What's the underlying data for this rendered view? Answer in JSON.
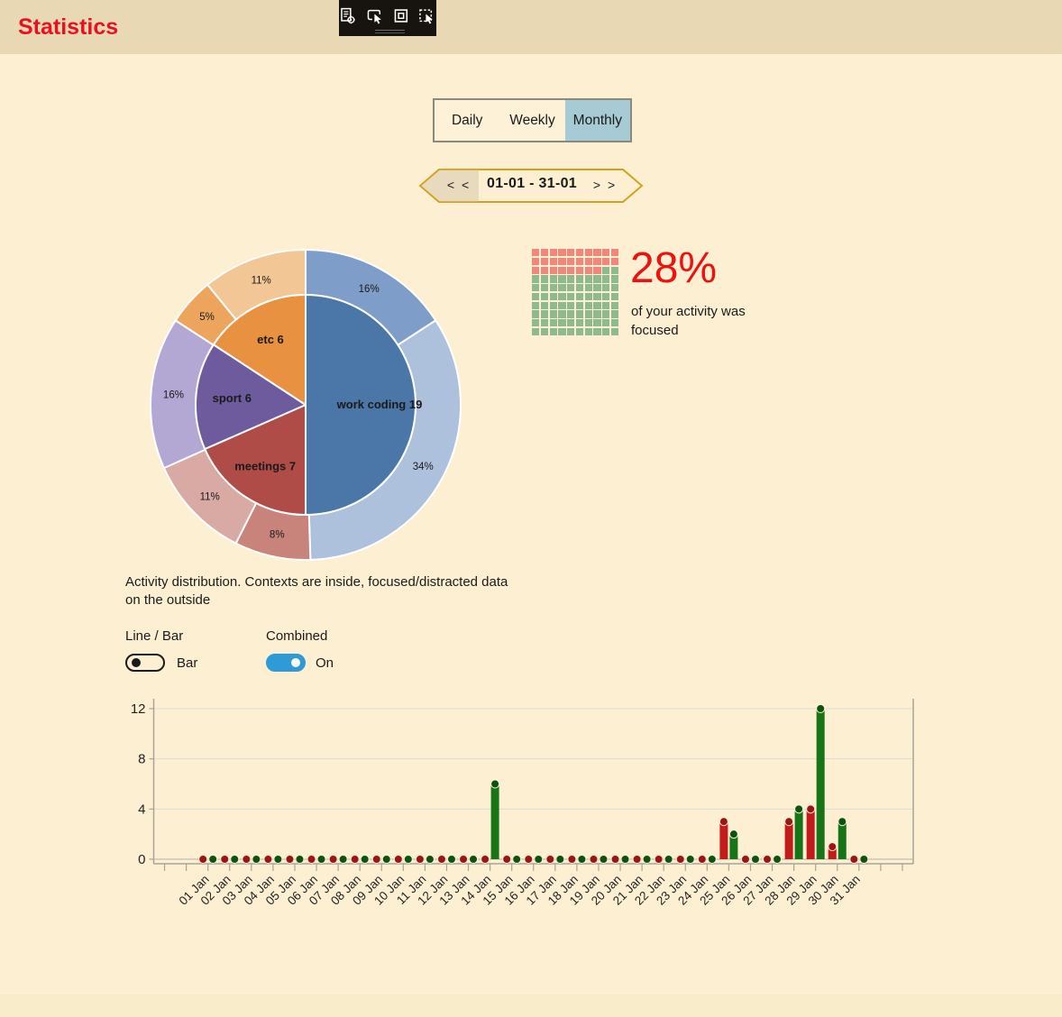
{
  "theme": {
    "page_bg": "#fdf0d2",
    "band_bg": "#e9d8b4",
    "title_color": "#e81123",
    "accent": "#2e9bd6",
    "tab_selected_bg": "#a7cbd4",
    "hexagon_border": "#d5a021",
    "hexagon_left_fill": "#e8dabc"
  },
  "header": {
    "title": "Statistics"
  },
  "toolbar": {
    "icons": [
      "report-target-icon",
      "select-window-icon",
      "highlight-square-icon",
      "select-element-icon"
    ]
  },
  "tabs": {
    "items": [
      {
        "label": "Daily",
        "selected": false
      },
      {
        "label": "Weekly",
        "selected": false
      },
      {
        "label": "Monthly",
        "selected": true
      }
    ]
  },
  "date_nav": {
    "prev_label": "< <",
    "range_label": "01-01 - 31-01",
    "next_label": "> >"
  },
  "sunburst": {
    "caption": "Activity distribution. Contexts are inside, focused/distracted data on the outside",
    "inner_segments": [
      {
        "label": "work coding 19",
        "value": 19,
        "color": "#4a76a8"
      },
      {
        "label": "meetings 7",
        "value": 7,
        "color": "#b04c48"
      },
      {
        "label": "sport 6",
        "value": 6,
        "color": "#6d5b9e"
      },
      {
        "label": "etc 6",
        "value": 6,
        "color": "#e89140"
      }
    ],
    "outer_segments": [
      {
        "label": "16%",
        "value": 16,
        "color": "#7e9dc8"
      },
      {
        "label": "34%",
        "value": 34,
        "color": "#adc0dc"
      },
      {
        "label": "8%",
        "value": 8,
        "color": "#c8837b"
      },
      {
        "label": "11%",
        "value": 11,
        "color": "#d9a9a4"
      },
      {
        "label": "16%",
        "value": 16,
        "color": "#b3a8d4"
      },
      {
        "label": "5%",
        "value": 5,
        "color": "#eda55e"
      },
      {
        "label": "11%",
        "value": 11,
        "color": "#f3c795"
      }
    ]
  },
  "waffle": {
    "rows": 10,
    "cols": 10,
    "highlight_count": 28,
    "highlight_color": "#f0877a",
    "base_color": "#8fba8f",
    "headline": "28%",
    "subtext": "of your activity was focused"
  },
  "controls": {
    "line_bar": {
      "label": "Line / Bar",
      "value": "Bar",
      "state": "off"
    },
    "combined": {
      "label": "Combined",
      "value": "On",
      "state": "on"
    }
  },
  "chart_data": {
    "type": "bar",
    "title": "",
    "categories": [
      "01 Jan",
      "02 Jan",
      "03 Jan",
      "04 Jan",
      "05 Jan",
      "06 Jan",
      "07 Jan",
      "08 Jan",
      "09 Jan",
      "10 Jan",
      "11 Jan",
      "12 Jan",
      "13 Jan",
      "14 Jan",
      "15 Jan",
      "16 Jan",
      "17 Jan",
      "18 Jan",
      "19 Jan",
      "20 Jan",
      "21 Jan",
      "22 Jan",
      "23 Jan",
      "24 Jan",
      "25 Jan",
      "26 Jan",
      "27 Jan",
      "28 Jan",
      "29 Jan",
      "30 Jan",
      "31 Jan"
    ],
    "series": [
      {
        "name": "red",
        "color": "#c31a1a",
        "marker_color": "#9d1414",
        "values": [
          0,
          0,
          0,
          0,
          0,
          0,
          0,
          0,
          0,
          0,
          0,
          0,
          0,
          0,
          0,
          0,
          0,
          0,
          0,
          0,
          0,
          0,
          0,
          0,
          3,
          0,
          0,
          3,
          4,
          1,
          0
        ]
      },
      {
        "name": "green",
        "color": "#177417",
        "marker_color": "#0d5310",
        "values": [
          0,
          0,
          0,
          0,
          0,
          0,
          0,
          0,
          0,
          0,
          0,
          0,
          0,
          6,
          0,
          0,
          0,
          0,
          0,
          0,
          0,
          0,
          0,
          0,
          2,
          0,
          0,
          4,
          12,
          3,
          0
        ]
      }
    ],
    "ylim": [
      0,
      12
    ],
    "yticks": [
      0,
      4,
      8,
      12
    ],
    "grid": true,
    "legend": false,
    "empty_slots_left": 2,
    "empty_slots_right": 2
  }
}
